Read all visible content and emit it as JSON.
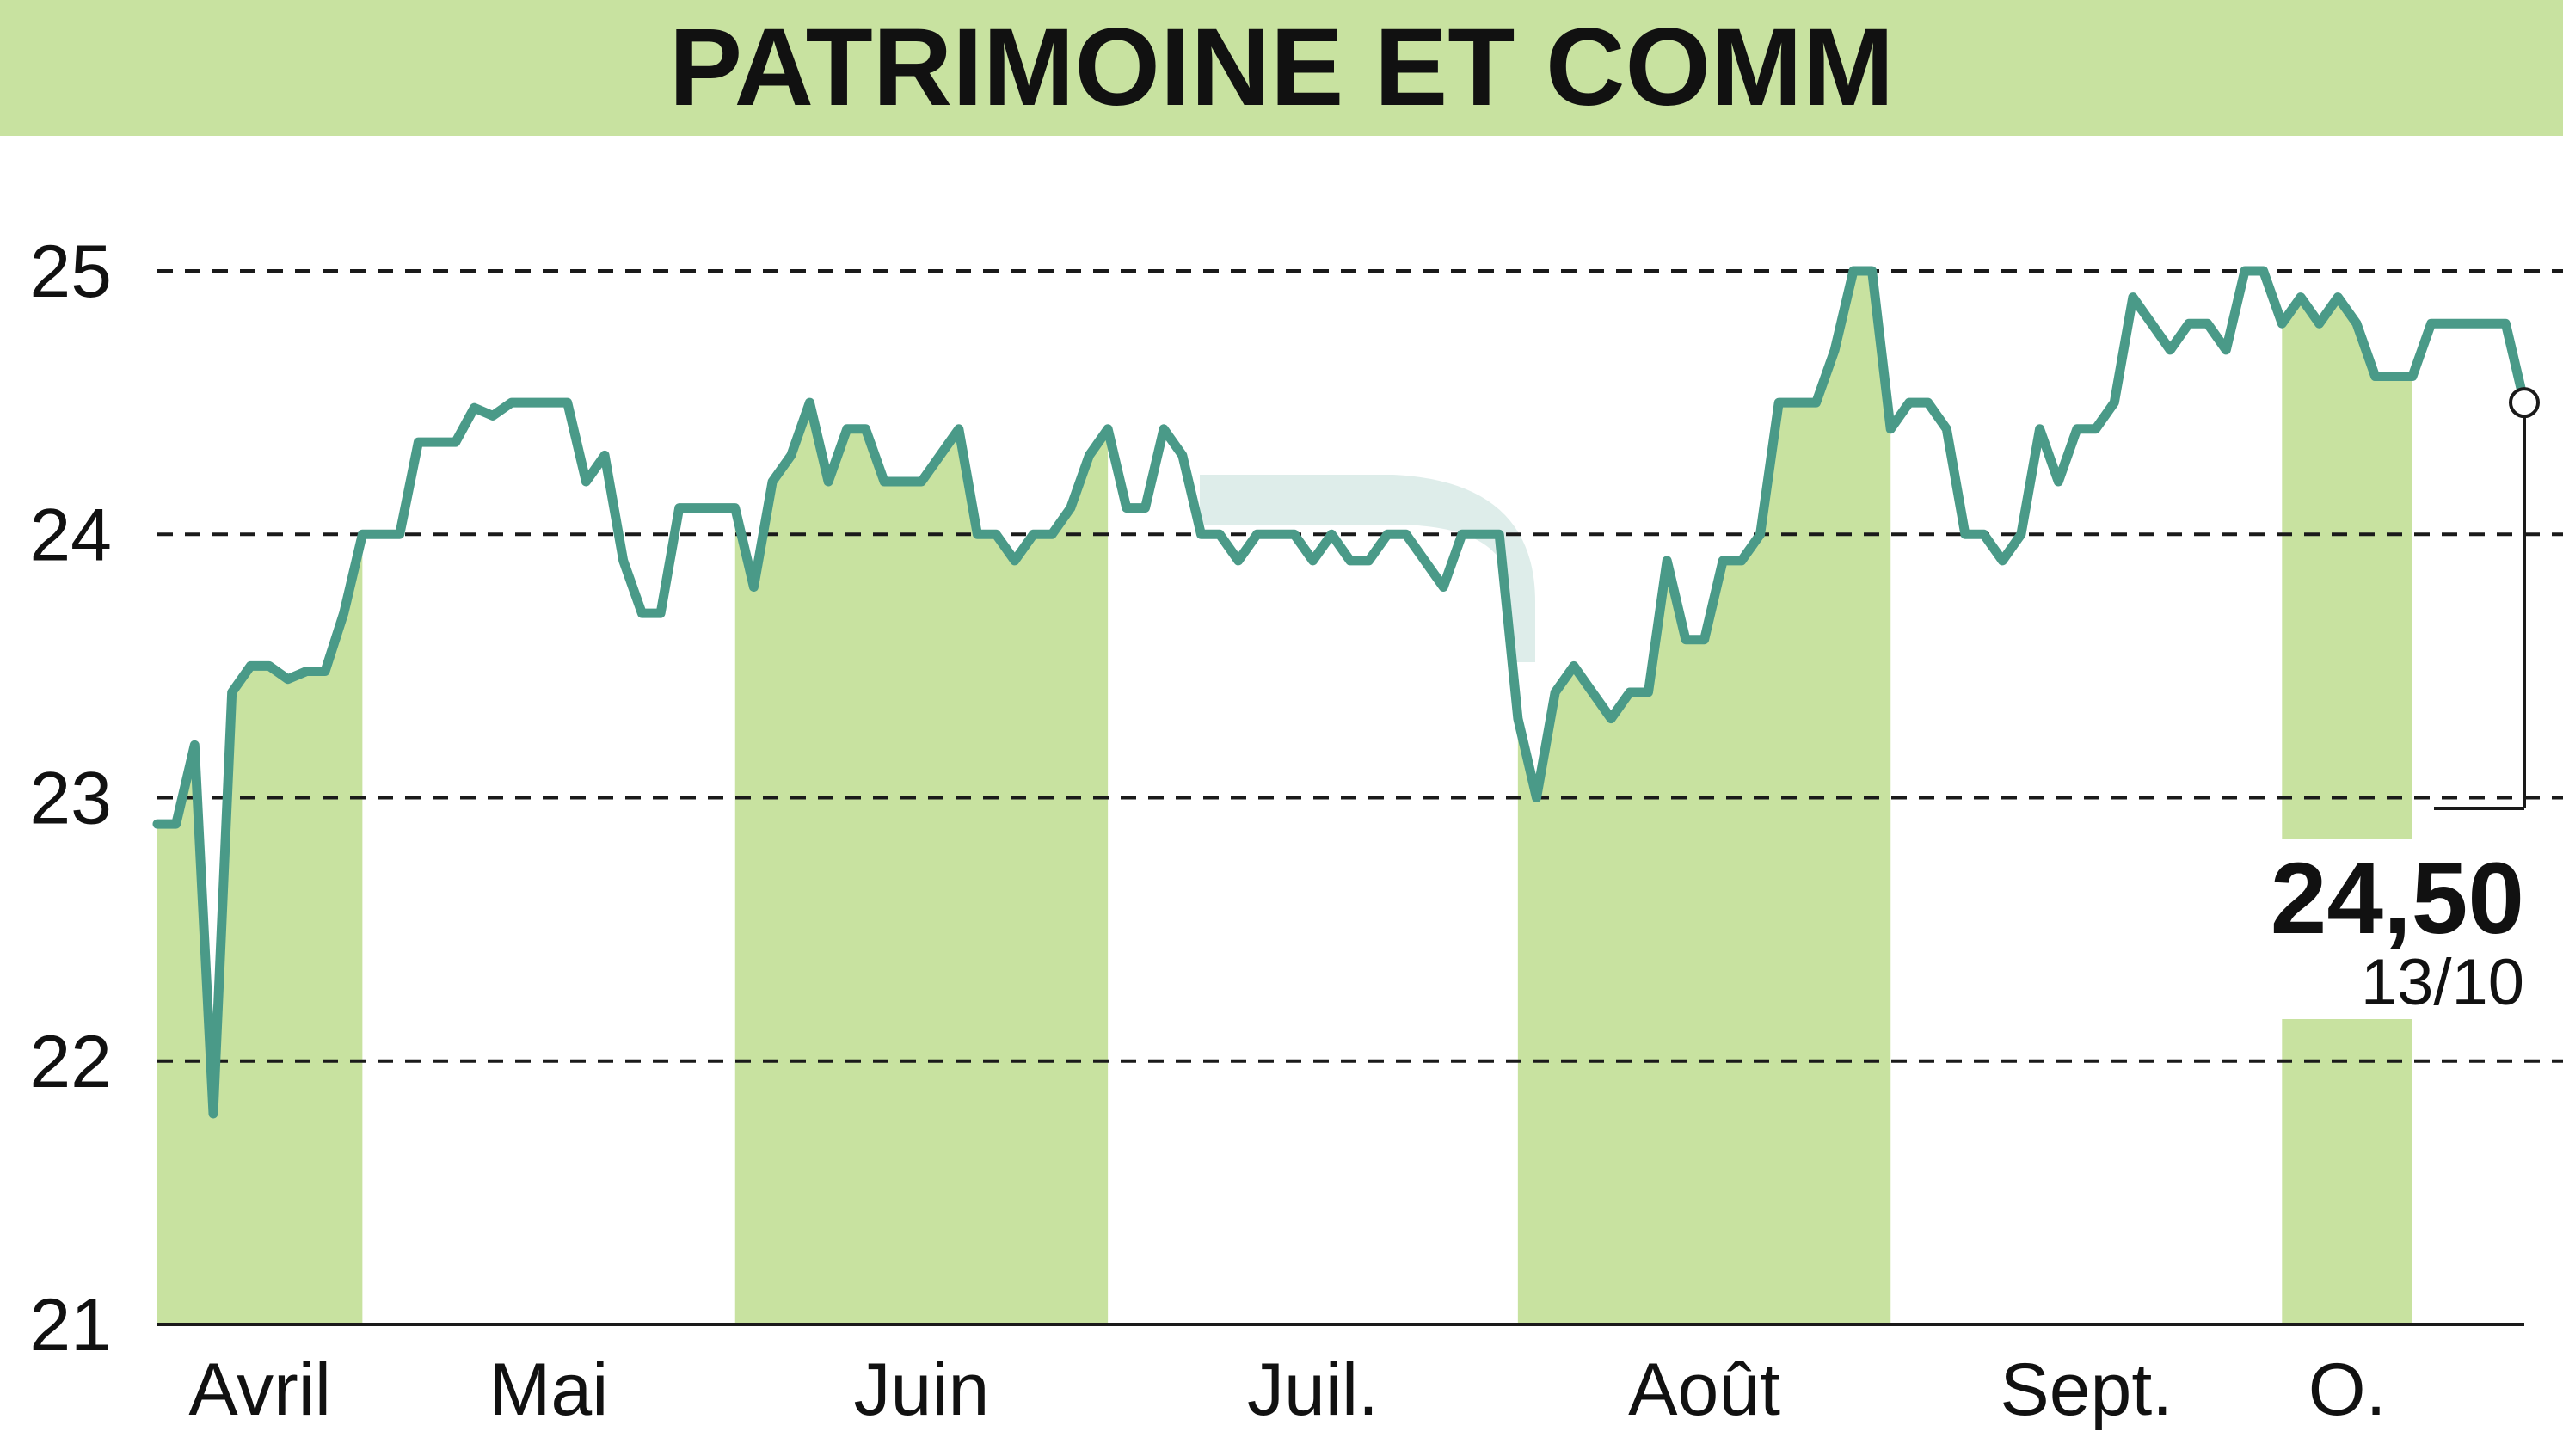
{
  "colors": {
    "band": "#c8e2a0",
    "line": "#4a9a88",
    "grid": "#1a1a1a",
    "text": "#111111",
    "background": "#ffffff"
  },
  "chart_data": {
    "type": "line",
    "title": "PATRIMOINE ET COMM",
    "y_ticks": [
      "25",
      "24",
      "23",
      "22",
      "21"
    ],
    "ylim": [
      21,
      25
    ],
    "grid": "horizontal-dashed",
    "months": [
      {
        "label": "Avril",
        "start": 0,
        "end": 11,
        "shaded": true
      },
      {
        "label": "Mai",
        "start": 11,
        "end": 31,
        "shaded": false
      },
      {
        "label": "Juin",
        "start": 31,
        "end": 51,
        "shaded": true
      },
      {
        "label": "Juil.",
        "start": 51,
        "end": 73,
        "shaded": false
      },
      {
        "label": "Août",
        "start": 73,
        "end": 93,
        "shaded": true
      },
      {
        "label": "Sept.",
        "start": 93,
        "end": 114,
        "shaded": false
      },
      {
        "label": "O.",
        "start": 114,
        "end": 121,
        "shaded": true
      }
    ],
    "series": [
      {
        "values": [
          22.9,
          22.9,
          23.2,
          21.8,
          23.4,
          23.5,
          23.5,
          23.45,
          23.48,
          23.48,
          23.7,
          24.0,
          24.0,
          24.0,
          24.35,
          24.35,
          24.35,
          24.48,
          24.45,
          24.5,
          24.5,
          24.5,
          24.5,
          24.2,
          24.3,
          23.9,
          23.7,
          23.7,
          24.1,
          24.1,
          24.1,
          24.1,
          23.8,
          24.2,
          24.3,
          24.5,
          24.2,
          24.4,
          24.4,
          24.2,
          24.2,
          24.2,
          24.3,
          24.4,
          24.0,
          24.0,
          23.9,
          24.0,
          24.0,
          24.1,
          24.3,
          24.4,
          24.1,
          24.1,
          24.4,
          24.3,
          24.0,
          24.0,
          23.9,
          24.0,
          24.0,
          24.0,
          23.9,
          24.0,
          23.9,
          23.9,
          24.0,
          24.0,
          23.9,
          23.8,
          24.0,
          24.0,
          24.0,
          23.3,
          23.0,
          23.4,
          23.5,
          23.4,
          23.3,
          23.4,
          23.4,
          23.9,
          23.6,
          23.6,
          23.9,
          23.9,
          24.0,
          24.5,
          24.5,
          24.5,
          24.7,
          25.0,
          25.0,
          24.4,
          24.5,
          24.5,
          24.4,
          24.0,
          24.0,
          23.9,
          24.0,
          24.4,
          24.2,
          24.4,
          24.4,
          24.5,
          24.9,
          24.8,
          24.7,
          24.8,
          24.8,
          24.7,
          25.0,
          25.0,
          24.8,
          24.9,
          24.8,
          24.9,
          24.8,
          24.6,
          24.6,
          24.6,
          24.8,
          24.8,
          24.8,
          24.8,
          24.8,
          24.5
        ]
      }
    ],
    "last_value": "24,50",
    "last_date": "13/10"
  }
}
